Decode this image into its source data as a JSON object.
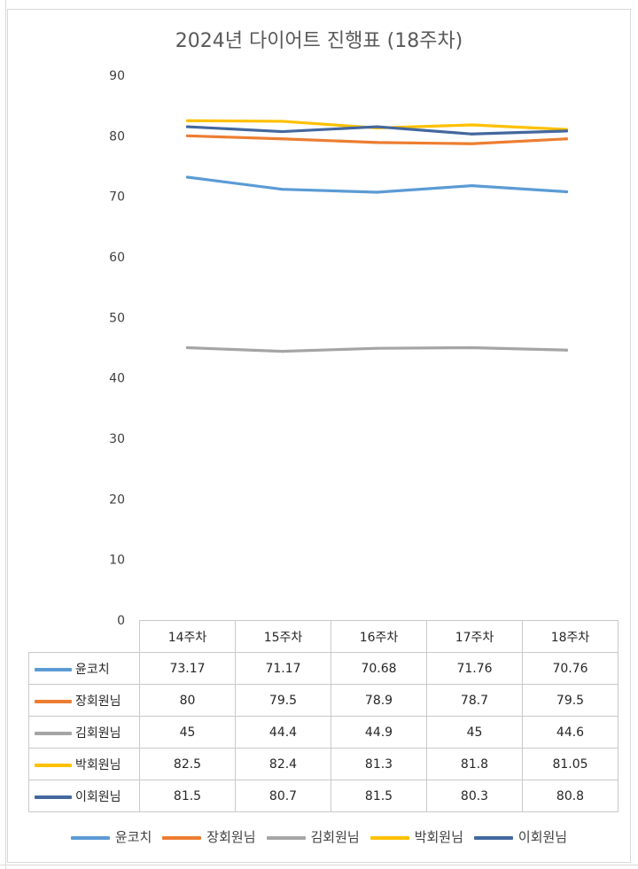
{
  "chart_data": {
    "type": "line",
    "title": "2024년 다이어트 진행표 (18주차)",
    "categories": [
      "14주차",
      "15주차",
      "16주차",
      "17주차",
      "18주차"
    ],
    "ylim": [
      0,
      90
    ],
    "yticks": [
      "0",
      "10",
      "20",
      "30",
      "40",
      "50",
      "60",
      "70",
      "80",
      "90"
    ],
    "grid": false,
    "legend_position": "bottom",
    "data_table": true,
    "series": [
      {
        "name": "윤코치",
        "color": "#5b9bd5",
        "values": [
          73.17,
          71.17,
          70.68,
          71.76,
          70.76
        ],
        "labels": [
          "73.17",
          "71.17",
          "70.68",
          "71.76",
          "70.76"
        ]
      },
      {
        "name": "장회원님",
        "color": "#ed7d31",
        "values": [
          80,
          79.5,
          78.9,
          78.7,
          79.5
        ],
        "labels": [
          "80",
          "79.5",
          "78.9",
          "78.7",
          "79.5"
        ]
      },
      {
        "name": "김회원님",
        "color": "#a5a5a5",
        "values": [
          45,
          44.4,
          44.9,
          45,
          44.6
        ],
        "labels": [
          "45",
          "44.4",
          "44.9",
          "45",
          "44.6"
        ]
      },
      {
        "name": "박회원님",
        "color": "#ffc000",
        "values": [
          82.5,
          82.4,
          81.3,
          81.8,
          81.05
        ],
        "labels": [
          "82.5",
          "82.4",
          "81.3",
          "81.8",
          "81.05"
        ]
      },
      {
        "name": "이회원님",
        "color": "#44679e",
        "values": [
          81.5,
          80.7,
          81.5,
          80.3,
          80.8
        ],
        "labels": [
          "81.5",
          "80.7",
          "81.5",
          "80.3",
          "80.8"
        ]
      }
    ]
  }
}
